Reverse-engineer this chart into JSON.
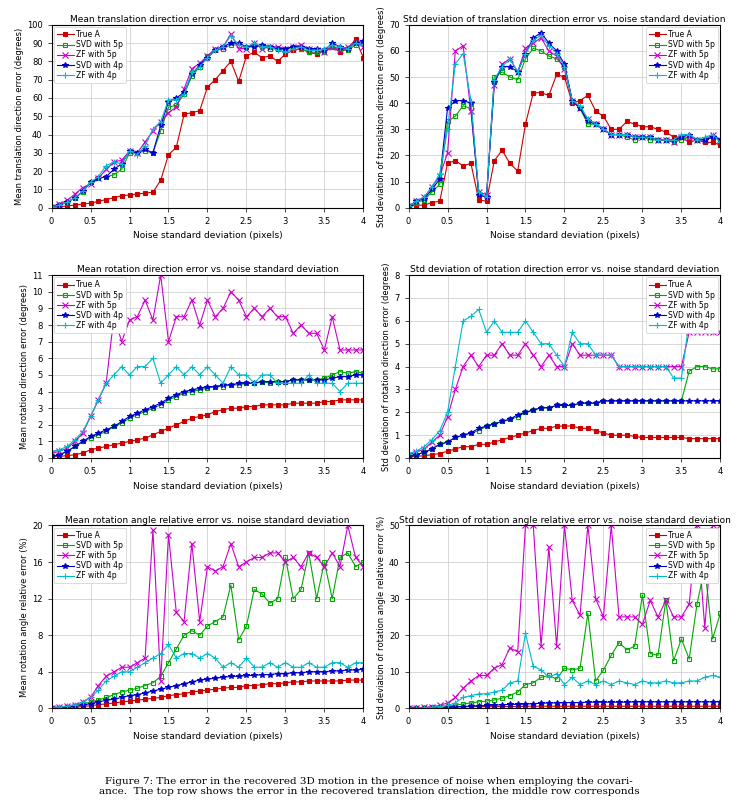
{
  "x": [
    0.0,
    0.1,
    0.2,
    0.3,
    0.4,
    0.5,
    0.6,
    0.7,
    0.8,
    0.9,
    1.0,
    1.1,
    1.2,
    1.3,
    1.4,
    1.5,
    1.6,
    1.7,
    1.8,
    1.9,
    2.0,
    2.1,
    2.2,
    2.3,
    2.4,
    2.5,
    2.6,
    2.7,
    2.8,
    2.9,
    3.0,
    3.1,
    3.2,
    3.3,
    3.4,
    3.5,
    3.6,
    3.7,
    3.8,
    3.9,
    4.0
  ],
  "colors": {
    "true_a": "#cc0000",
    "svd_5p": "#00aa00",
    "zf_5p": "#cc00cc",
    "svd_4p": "#0000cc",
    "zf_4p": "#00bbcc"
  },
  "legend_labels": [
    "True A",
    "SVD with 5p",
    "ZF with 5p",
    "SVD with 4p",
    "ZF with 4p"
  ],
  "plot1": {
    "title": "Mean translation direction error vs. noise standard deviation",
    "ylabel": "Mean translation direction error (degrees)",
    "xlabel": "Noise standard deviation (pixels)",
    "ylim": [
      0,
      100
    ],
    "yticks": [
      0,
      10,
      20,
      30,
      40,
      50,
      60,
      70,
      80,
      90,
      100
    ],
    "true_a": [
      0.5,
      0.5,
      1.0,
      1.5,
      2.0,
      2.5,
      3.5,
      4.5,
      5.5,
      6.5,
      7.0,
      7.5,
      8.0,
      8.5,
      15,
      29,
      33,
      51,
      52,
      53,
      66,
      70,
      75,
      80,
      69,
      83,
      85,
      82,
      83,
      80,
      84,
      86,
      87,
      85,
      84,
      86,
      88,
      85,
      87,
      92,
      82
    ],
    "svd_5p": [
      0.5,
      1.5,
      3.0,
      5.5,
      8.5,
      14,
      16,
      17,
      18,
      21,
      30,
      30,
      31,
      30,
      42,
      55,
      56,
      62,
      72,
      77,
      83,
      86,
      87,
      89,
      89,
      88,
      89,
      88,
      87,
      87,
      86,
      88,
      87,
      85,
      85,
      85,
      88,
      87,
      86,
      89,
      90
    ],
    "zf_5p": [
      0.5,
      2.0,
      4.0,
      7.5,
      11,
      13,
      16,
      21,
      25,
      26,
      31,
      30,
      36,
      42,
      47,
      52,
      55,
      65,
      76,
      79,
      83,
      87,
      88,
      95,
      87,
      87,
      90,
      87,
      88,
      88,
      87,
      88,
      89,
      87,
      86,
      85,
      88,
      86,
      88,
      90,
      88
    ],
    "svd_4p": [
      0.5,
      1.5,
      3.0,
      5.5,
      9.0,
      14,
      16,
      17,
      21,
      24,
      31,
      30,
      32,
      30,
      45,
      58,
      60,
      63,
      73,
      78,
      82,
      86,
      88,
      90,
      90,
      88,
      88,
      89,
      88,
      87,
      87,
      88,
      88,
      87,
      87,
      86,
      90,
      88,
      87,
      90,
      91
    ],
    "zf_4p": [
      0.5,
      1.5,
      3.0,
      5.5,
      9.0,
      14,
      17,
      23,
      25,
      24,
      31,
      29,
      34,
      43,
      47,
      59,
      59,
      62,
      74,
      77,
      82,
      86,
      88,
      94,
      89,
      88,
      90,
      88,
      88,
      86,
      85,
      87,
      88,
      86,
      86,
      87,
      89,
      88,
      87,
      90,
      89
    ]
  },
  "plot2": {
    "title": "Std deviation of translation direction error vs. noise standard deviation",
    "ylabel": "Std deviation of translation direction error (degrees)",
    "xlabel": "Noise standard deviation (pixels)",
    "ylim": [
      0,
      70
    ],
    "yticks": [
      0,
      10,
      20,
      30,
      40,
      50,
      60,
      70
    ],
    "true_a": [
      0.5,
      1.0,
      1.0,
      2.0,
      2.5,
      17,
      18,
      16,
      17,
      3,
      2.5,
      18,
      22,
      17,
      14,
      32,
      44,
      44,
      43,
      51,
      50,
      40,
      41,
      43,
      37,
      35,
      30,
      30,
      33,
      32,
      31,
      31,
      30,
      29,
      27,
      27,
      25,
      26,
      25,
      25,
      24
    ],
    "svd_5p": [
      0.5,
      2.0,
      3.0,
      6.0,
      9.0,
      33,
      35,
      39,
      38,
      5,
      4,
      50,
      52,
      50,
      49,
      57,
      61,
      60,
      58,
      57,
      54,
      41,
      38,
      32,
      32,
      30,
      28,
      28,
      27,
      26,
      27,
      26,
      26,
      26,
      25,
      26,
      27,
      26,
      26,
      27,
      26
    ],
    "zf_5p": [
      0.5,
      2.5,
      4.0,
      8.0,
      12,
      21,
      60,
      62,
      37,
      6,
      5,
      47,
      55,
      57,
      52,
      61,
      63,
      65,
      60,
      58,
      53,
      41,
      38,
      34,
      32,
      30,
      28,
      28,
      28,
      27,
      27,
      27,
      26,
      26,
      25,
      27,
      27,
      26,
      26,
      28,
      26
    ],
    "svd_4p": [
      0.5,
      2.5,
      3.5,
      7.0,
      11,
      38,
      41,
      41,
      40,
      5,
      4,
      48,
      54,
      54,
      52,
      59,
      65,
      67,
      63,
      60,
      55,
      41,
      38,
      33,
      32,
      30,
      28,
      28,
      28,
      27,
      27,
      27,
      26,
      26,
      26,
      27,
      28,
      26,
      26,
      27,
      26
    ],
    "zf_4p": [
      0.5,
      2.5,
      4.0,
      8.0,
      13,
      30,
      55,
      59,
      41,
      6,
      4,
      49,
      54,
      57,
      52,
      59,
      64,
      66,
      62,
      59,
      54,
      41,
      39,
      34,
      32,
      30,
      28,
      28,
      28,
      27,
      27,
      27,
      26,
      26,
      26,
      28,
      28,
      26,
      27,
      28,
      25
    ]
  },
  "plot3": {
    "title": "Mean rotation direction error vs. noise standard deviation",
    "ylabel": "Mean rotation direction error (degrees)",
    "xlabel": "Noise standard deviation (pixels)",
    "ylim": [
      0,
      11
    ],
    "yticks": [
      0,
      1,
      2,
      3,
      4,
      5,
      6,
      7,
      8,
      9,
      10,
      11
    ],
    "true_a": [
      0.1,
      0.1,
      0.15,
      0.2,
      0.3,
      0.5,
      0.6,
      0.7,
      0.8,
      0.9,
      1.0,
      1.1,
      1.2,
      1.4,
      1.6,
      1.8,
      2.0,
      2.2,
      2.4,
      2.5,
      2.6,
      2.8,
      2.9,
      3.0,
      3.0,
      3.1,
      3.1,
      3.2,
      3.2,
      3.2,
      3.2,
      3.3,
      3.3,
      3.3,
      3.3,
      3.4,
      3.4,
      3.5,
      3.5,
      3.5,
      3.5
    ],
    "svd_5p": [
      0.1,
      0.2,
      0.4,
      0.7,
      1.0,
      1.2,
      1.4,
      1.6,
      1.9,
      2.1,
      2.4,
      2.6,
      2.8,
      3.0,
      3.2,
      3.5,
      3.7,
      3.9,
      4.0,
      4.1,
      4.2,
      4.3,
      4.3,
      4.4,
      4.4,
      4.5,
      4.5,
      4.6,
      4.5,
      4.6,
      4.6,
      4.7,
      4.7,
      4.7,
      4.7,
      4.8,
      5.0,
      5.2,
      5.1,
      5.2,
      5.1
    ],
    "zf_5p": [
      0.3,
      0.4,
      0.6,
      1.0,
      1.5,
      2.5,
      3.5,
      4.5,
      8.5,
      7.0,
      8.3,
      8.5,
      9.5,
      8.3,
      11.0,
      7.0,
      8.5,
      8.5,
      9.5,
      8.0,
      9.5,
      8.5,
      9.0,
      10.0,
      9.5,
      8.5,
      9.0,
      8.5,
      9.0,
      8.5,
      8.5,
      7.5,
      8.0,
      7.5,
      7.5,
      6.5,
      8.5,
      6.5,
      6.5,
      6.5,
      6.5
    ],
    "svd_4p": [
      0.1,
      0.2,
      0.4,
      0.7,
      1.0,
      1.3,
      1.5,
      1.7,
      1.9,
      2.2,
      2.5,
      2.7,
      2.9,
      3.1,
      3.3,
      3.6,
      3.8,
      4.0,
      4.1,
      4.2,
      4.3,
      4.3,
      4.4,
      4.4,
      4.5,
      4.5,
      4.5,
      4.6,
      4.6,
      4.6,
      4.6,
      4.7,
      4.7,
      4.7,
      4.7,
      4.7,
      4.8,
      4.9,
      4.9,
      5.0,
      5.0
    ],
    "zf_4p": [
      0.4,
      0.5,
      0.7,
      1.1,
      1.6,
      2.5,
      3.5,
      4.5,
      5.0,
      5.5,
      5.0,
      5.5,
      5.5,
      6.0,
      4.5,
      5.0,
      5.5,
      5.0,
      5.5,
      5.0,
      5.5,
      5.0,
      4.5,
      5.5,
      5.0,
      5.0,
      4.5,
      5.0,
      5.0,
      4.5,
      4.5,
      4.5,
      4.5,
      5.0,
      4.5,
      4.5,
      4.5,
      4.0,
      4.5,
      4.5,
      4.5
    ]
  },
  "plot4": {
    "title": "Std deviation of rotation direction error vs. noise standard deviation",
    "ylabel": "Std deviation of rotation direction error (degrees)",
    "xlabel": "Noise standard deviation (pixels)",
    "ylim": [
      0,
      8
    ],
    "yticks": [
      0,
      1,
      2,
      3,
      4,
      5,
      6,
      7,
      8
    ],
    "true_a": [
      0.05,
      0.08,
      0.1,
      0.15,
      0.2,
      0.3,
      0.4,
      0.5,
      0.5,
      0.6,
      0.6,
      0.7,
      0.8,
      0.9,
      1.0,
      1.1,
      1.2,
      1.3,
      1.3,
      1.4,
      1.4,
      1.4,
      1.3,
      1.3,
      1.2,
      1.1,
      1.0,
      1.0,
      1.0,
      0.95,
      0.9,
      0.9,
      0.9,
      0.9,
      0.9,
      0.9,
      0.85,
      0.85,
      0.85,
      0.85,
      0.85
    ],
    "svd_5p": [
      0.1,
      0.15,
      0.25,
      0.4,
      0.6,
      0.7,
      0.9,
      1.0,
      1.1,
      1.2,
      1.4,
      1.5,
      1.6,
      1.7,
      1.8,
      2.0,
      2.1,
      2.2,
      2.2,
      2.3,
      2.3,
      2.3,
      2.4,
      2.4,
      2.4,
      2.5,
      2.5,
      2.5,
      2.5,
      2.5,
      2.5,
      2.5,
      2.5,
      2.5,
      2.5,
      2.5,
      3.8,
      4.0,
      4.0,
      3.9,
      3.9
    ],
    "zf_5p": [
      0.15,
      0.25,
      0.4,
      0.7,
      1.0,
      1.8,
      3.0,
      4.0,
      4.5,
      4.0,
      4.5,
      4.5,
      5.0,
      4.5,
      4.5,
      5.0,
      4.5,
      4.0,
      4.5,
      4.0,
      4.0,
      5.0,
      4.5,
      4.5,
      4.5,
      4.5,
      4.5,
      4.0,
      4.0,
      4.0,
      4.0,
      4.0,
      4.0,
      4.0,
      4.0,
      4.0,
      5.5,
      5.5,
      5.5,
      5.5,
      5.5
    ],
    "svd_4p": [
      0.1,
      0.15,
      0.25,
      0.4,
      0.6,
      0.7,
      0.9,
      1.0,
      1.1,
      1.3,
      1.4,
      1.5,
      1.6,
      1.7,
      1.9,
      2.0,
      2.1,
      2.2,
      2.2,
      2.3,
      2.3,
      2.3,
      2.4,
      2.4,
      2.4,
      2.5,
      2.5,
      2.5,
      2.5,
      2.5,
      2.5,
      2.5,
      2.5,
      2.5,
      2.5,
      2.5,
      2.5,
      2.5,
      2.5,
      2.5,
      2.5
    ],
    "zf_4p": [
      0.2,
      0.3,
      0.5,
      0.8,
      1.2,
      2.0,
      4.0,
      6.0,
      6.2,
      6.5,
      5.5,
      6.0,
      5.5,
      5.5,
      5.5,
      6.0,
      5.5,
      5.0,
      5.0,
      4.5,
      4.0,
      5.5,
      5.0,
      5.0,
      4.5,
      4.5,
      4.5,
      4.0,
      4.0,
      4.0,
      4.0,
      4.0,
      4.0,
      4.0,
      3.5,
      3.5,
      6.0,
      6.0,
      6.0,
      5.5,
      5.5
    ]
  },
  "plot5": {
    "title": "Mean rotation angle relative error vs. noise standard deviation",
    "ylabel": "Mean rotation angle relative error (%)",
    "xlabel": "Noise standard deviation (pixels)",
    "ylim": [
      0,
      20
    ],
    "yticks": [
      0,
      4,
      8,
      12,
      16,
      20
    ],
    "true_a": [
      0.05,
      0.05,
      0.1,
      0.15,
      0.2,
      0.3,
      0.4,
      0.5,
      0.6,
      0.7,
      0.8,
      0.9,
      1.0,
      1.1,
      1.2,
      1.4,
      1.5,
      1.6,
      1.8,
      1.9,
      2.0,
      2.1,
      2.2,
      2.3,
      2.3,
      2.5,
      2.5,
      2.6,
      2.7,
      2.7,
      2.8,
      2.9,
      2.9,
      3.0,
      3.0,
      3.0,
      3.0,
      3.0,
      3.1,
      3.1,
      3.1
    ],
    "svd_5p": [
      0.05,
      0.1,
      0.2,
      0.3,
      0.5,
      0.7,
      0.9,
      1.2,
      1.5,
      1.8,
      2.0,
      2.2,
      2.5,
      2.8,
      3.5,
      5.0,
      6.5,
      8.0,
      8.5,
      8.0,
      9.0,
      9.5,
      10.0,
      13.5,
      7.5,
      9.0,
      13.0,
      12.5,
      11.5,
      12.0,
      16.5,
      12.0,
      13.0,
      17.0,
      12.0,
      16.0,
      12.0,
      16.5,
      17.0,
      15.5,
      16.0
    ],
    "zf_5p": [
      0.1,
      0.15,
      0.25,
      0.4,
      0.7,
      1.2,
      2.5,
      3.5,
      4.0,
      4.5,
      4.5,
      5.0,
      5.5,
      19.5,
      3.0,
      19.0,
      10.5,
      9.5,
      18.0,
      9.5,
      15.5,
      15.0,
      15.5,
      18.0,
      15.5,
      16.0,
      16.5,
      16.5,
      17.0,
      17.0,
      16.0,
      16.5,
      15.5,
      17.0,
      16.5,
      15.5,
      17.0,
      15.5,
      20.0,
      16.5,
      15.5
    ],
    "svd_4p": [
      0.05,
      0.1,
      0.15,
      0.25,
      0.4,
      0.5,
      0.7,
      0.9,
      1.0,
      1.2,
      1.4,
      1.5,
      1.7,
      1.9,
      2.1,
      2.3,
      2.5,
      2.7,
      2.9,
      3.1,
      3.2,
      3.3,
      3.4,
      3.5,
      3.5,
      3.6,
      3.6,
      3.7,
      3.7,
      3.8,
      3.8,
      3.9,
      3.9,
      4.0,
      4.0,
      4.0,
      4.1,
      4.1,
      4.2,
      4.2,
      4.3
    ],
    "zf_4p": [
      0.1,
      0.15,
      0.25,
      0.4,
      0.7,
      1.2,
      2.0,
      3.0,
      3.5,
      4.0,
      4.0,
      4.5,
      5.0,
      5.5,
      6.0,
      7.0,
      5.5,
      6.0,
      6.0,
      5.5,
      6.0,
      5.5,
      4.5,
      5.0,
      4.5,
      5.5,
      4.5,
      4.5,
      5.0,
      4.5,
      5.0,
      4.5,
      4.5,
      5.0,
      4.5,
      4.5,
      5.0,
      5.0,
      4.5,
      5.0,
      5.0
    ]
  },
  "plot6": {
    "title": "Std deviation of rotation angle relative error vs. noise standard deviation",
    "ylabel": "Std deviation of rotation angle relative error (%)",
    "xlabel": "Noise standard deviation (pixels)",
    "ylim": [
      0,
      50
    ],
    "yticks": [
      0,
      10,
      20,
      30,
      40,
      50
    ],
    "true_a": [
      0.05,
      0.05,
      0.1,
      0.15,
      0.2,
      0.3,
      0.4,
      0.5,
      0.5,
      0.5,
      0.5,
      0.5,
      0.5,
      0.5,
      0.5,
      0.6,
      0.6,
      0.6,
      0.6,
      0.6,
      0.6,
      0.6,
      0.6,
      0.6,
      0.6,
      0.6,
      0.6,
      0.6,
      0.6,
      0.6,
      0.6,
      0.6,
      0.6,
      0.6,
      0.6,
      0.6,
      0.6,
      0.6,
      0.6,
      0.6,
      0.6
    ],
    "svd_5p": [
      0.05,
      0.1,
      0.2,
      0.3,
      0.5,
      0.7,
      0.9,
      1.2,
      1.5,
      1.8,
      2.0,
      2.3,
      2.8,
      3.5,
      4.5,
      6.5,
      7.0,
      8.5,
      9.0,
      8.0,
      11.0,
      10.5,
      11.0,
      26.0,
      7.5,
      10.5,
      14.5,
      18.0,
      16.0,
      17.0,
      31.0,
      15.0,
      14.5,
      29.5,
      13.0,
      19.0,
      13.5,
      28.5,
      38.5,
      19.0,
      26.0
    ],
    "zf_5p": [
      0.1,
      0.15,
      0.3,
      0.5,
      0.8,
      1.5,
      3.0,
      5.5,
      7.5,
      9.0,
      9.0,
      11.0,
      12.0,
      16.5,
      15.5,
      50.0,
      50.0,
      17.0,
      44.0,
      17.0,
      50.0,
      29.5,
      25.5,
      50.0,
      30.0,
      25.0,
      50.0,
      25.0,
      25.0,
      25.0,
      23.0,
      29.5,
      25.0,
      29.5,
      25.0,
      25.0,
      28.5,
      50.0,
      22.0,
      50.0,
      50.0
    ],
    "svd_4p": [
      0.05,
      0.05,
      0.1,
      0.15,
      0.2,
      0.3,
      0.4,
      0.5,
      0.6,
      0.7,
      0.8,
      0.9,
      1.0,
      1.1,
      1.1,
      1.2,
      1.3,
      1.4,
      1.5,
      1.5,
      1.6,
      1.6,
      1.6,
      1.7,
      1.7,
      1.7,
      1.7,
      1.7,
      1.7,
      1.8,
      1.8,
      1.8,
      1.8,
      1.8,
      1.8,
      1.8,
      1.8,
      1.8,
      1.8,
      1.8,
      1.8
    ],
    "zf_4p": [
      0.1,
      0.1,
      0.2,
      0.3,
      0.5,
      0.8,
      1.5,
      3.0,
      3.5,
      4.0,
      4.0,
      4.5,
      5.0,
      7.0,
      7.5,
      20.5,
      11.5,
      10.5,
      8.5,
      9.5,
      6.5,
      8.5,
      6.5,
      7.5,
      6.5,
      7.5,
      6.5,
      7.5,
      7.0,
      6.5,
      7.5,
      7.0,
      7.0,
      7.5,
      7.0,
      7.0,
      7.5,
      7.5,
      8.5,
      9.0,
      8.5
    ]
  }
}
